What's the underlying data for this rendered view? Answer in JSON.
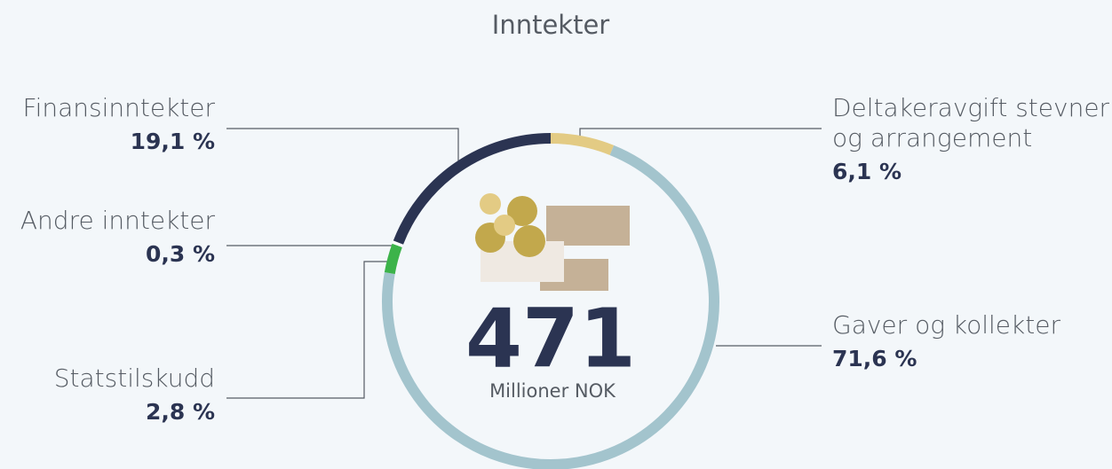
{
  "chart_data": {
    "type": "donut",
    "title": "Inntekter",
    "center_value": "471",
    "center_label": "Millioner NOK",
    "categories": [
      "Deltakeravgift stevner og arrangement",
      "Gaver og kollekter",
      "Statstilskudd",
      "Andre inntekter",
      "Finansinntekter"
    ],
    "values": [
      6.1,
      71.6,
      2.8,
      0.3,
      19.1
    ],
    "value_labels": [
      "6,1 %",
      "71,6 %",
      "2,8 %",
      "0,3 %",
      "19,1 %"
    ],
    "colors": [
      "#e3cb84",
      "#a3c4cd",
      "#3cb34a",
      "#ffffff",
      "#2b3452"
    ]
  }
}
